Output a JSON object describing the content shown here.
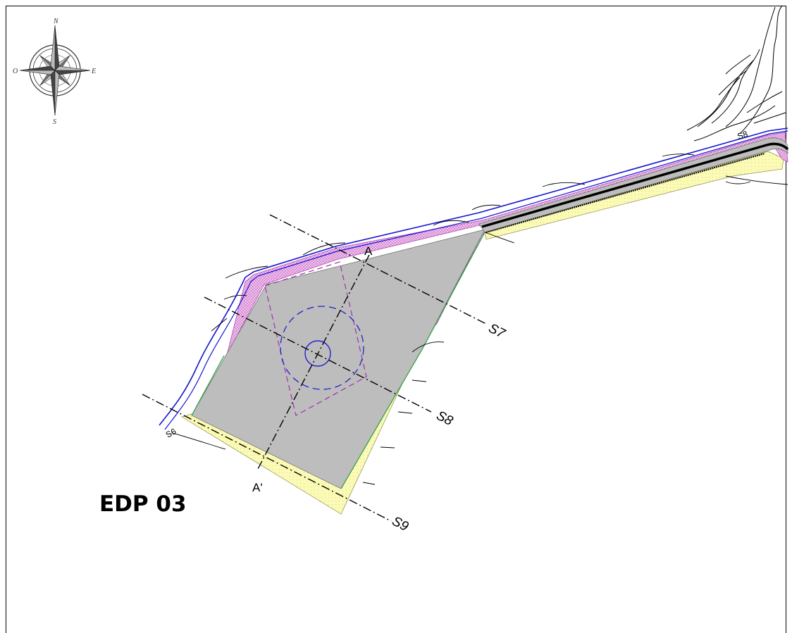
{
  "title": "EDP 03",
  "compass": {
    "north": "N",
    "south": "S",
    "east": "E",
    "west": "O"
  },
  "points": {
    "a": "A",
    "a_prime": "A'"
  },
  "sections": {
    "s7": "S7",
    "s8": "S8",
    "s9": "S9",
    "s6_small": "S6",
    "s8_small": "S8"
  },
  "colors": {
    "platform_fill": "#bdbdbd",
    "slope_fill": "#fbfbb6",
    "fill_pink": "#e39de3",
    "road_edge": "#1414d4",
    "dashed_purple": "#a030b0",
    "dashed_blue": "#2222cc",
    "slope_edge_green": "#36a04c"
  }
}
